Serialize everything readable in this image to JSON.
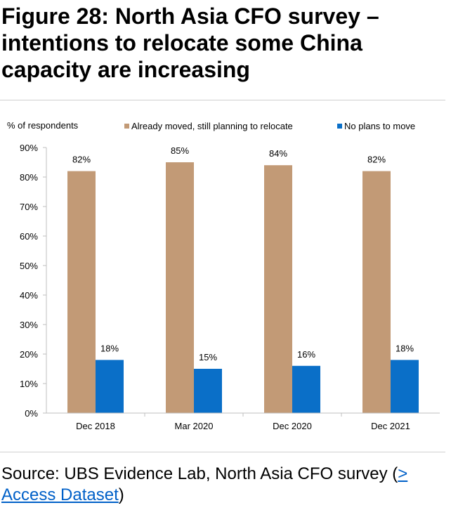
{
  "figure": {
    "title": "Figure 28: North Asia CFO survey – intentions to relocate some China capacity are increasing"
  },
  "source": {
    "text": "Source: UBS Evidence Lab, North Asia CFO survey (",
    "link_label": "> Access Dataset",
    "close": ")"
  },
  "colors": {
    "series_relocate": "#c29a76",
    "series_no_plans": "#0a6fc8"
  },
  "chart_data": {
    "type": "bar",
    "ylabel": "% of respondents",
    "categories": [
      "Dec 2018",
      "Mar 2020",
      "Dec 2020",
      "Dec 2021"
    ],
    "series": [
      {
        "name": "Already moved, still planning to relocate",
        "values": [
          82,
          85,
          84,
          82
        ],
        "labels": [
          "82%",
          "85%",
          "84%",
          "82%"
        ]
      },
      {
        "name": "No plans to move",
        "values": [
          18,
          15,
          16,
          18
        ],
        "labels": [
          "18%",
          "15%",
          "16%",
          "18%"
        ]
      }
    ],
    "ylim": [
      0,
      90
    ],
    "yticks": [
      0,
      10,
      20,
      30,
      40,
      50,
      60,
      70,
      80,
      90
    ],
    "ytick_labels": [
      "0%",
      "10%",
      "20%",
      "30%",
      "40%",
      "50%",
      "60%",
      "70%",
      "80%",
      "90%"
    ],
    "legend_position": "top",
    "grid": false
  }
}
